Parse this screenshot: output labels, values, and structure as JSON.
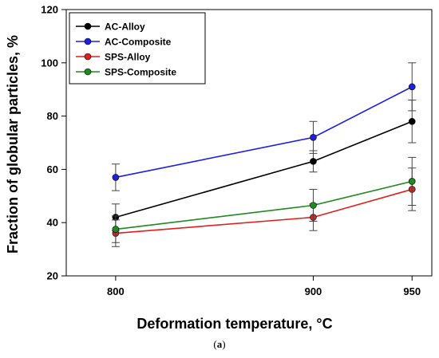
{
  "chart_data": {
    "type": "line",
    "x": [
      800,
      900,
      950
    ],
    "xlabel": "Deformation temperature, °C",
    "ylabel": "Fraction of globular particles, %",
    "xlim": [
      775,
      960
    ],
    "ylim": [
      20,
      120
    ],
    "xticks": [
      800,
      900,
      950
    ],
    "yticks": [
      20,
      40,
      60,
      80,
      100,
      120
    ],
    "legend_position": "top-left",
    "grid": false,
    "series": [
      {
        "name": "AC-Alloy",
        "color": "#000000",
        "values": [
          42,
          63,
          78
        ],
        "errors": [
          5,
          4,
          8
        ]
      },
      {
        "name": "AC-Composite",
        "color": "#1f1fe0",
        "values": [
          57,
          72,
          91
        ],
        "errors": [
          5,
          6,
          9
        ]
      },
      {
        "name": "SPS-Alloy",
        "color": "#e01f1f",
        "values": [
          36,
          42,
          52.5
        ],
        "errors": [
          5,
          5,
          8
        ]
      },
      {
        "name": "SPS-Composite",
        "color": "#1f8a1f",
        "values": [
          37.5,
          46.5,
          55.5
        ],
        "errors": [
          5,
          6,
          9
        ]
      }
    ]
  },
  "caption": {
    "open": "(",
    "letter": "a",
    "close": ")"
  }
}
